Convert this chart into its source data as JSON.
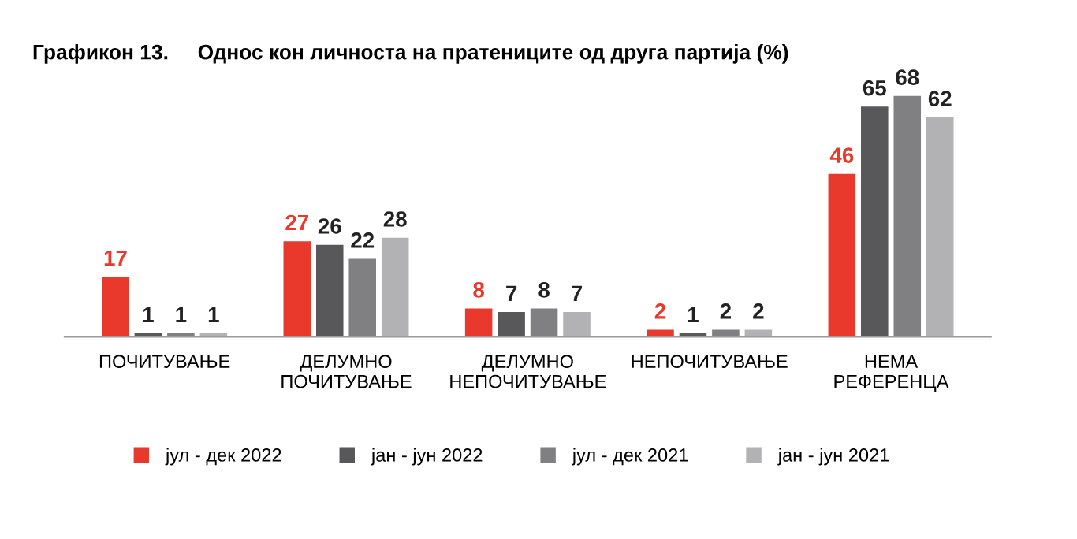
{
  "chart_data": {
    "type": "bar",
    "title": "Графикон 13.     Однос кон личноста на пратениците од друга партија (%)",
    "categories": [
      "ПОЧИТУВАЊЕ",
      "ДЕЛУМНО\nПОЧИТУВАЊЕ",
      "ДЕЛУМНО\nНЕПОЧИТУВАЊЕ",
      "НЕПОЧИТУВАЊЕ",
      "НЕМА\nРЕФЕРЕНЦА"
    ],
    "series": [
      {
        "name": "јул - дек 2022",
        "color": "#e8392c",
        "values": [
          17,
          27,
          8,
          2,
          46
        ]
      },
      {
        "name": "јан - јун 2022",
        "color": "#58585b",
        "values": [
          1,
          26,
          7,
          1,
          65
        ]
      },
      {
        "name": "јул - дек 2021",
        "color": "#808083",
        "values": [
          1,
          22,
          8,
          2,
          68
        ]
      },
      {
        "name": "јан - јун 2021",
        "color": "#b2b2b4",
        "values": [
          1,
          28,
          7,
          2,
          62
        ]
      }
    ],
    "data_labels": true,
    "legend": "bottom",
    "grid": false
  }
}
